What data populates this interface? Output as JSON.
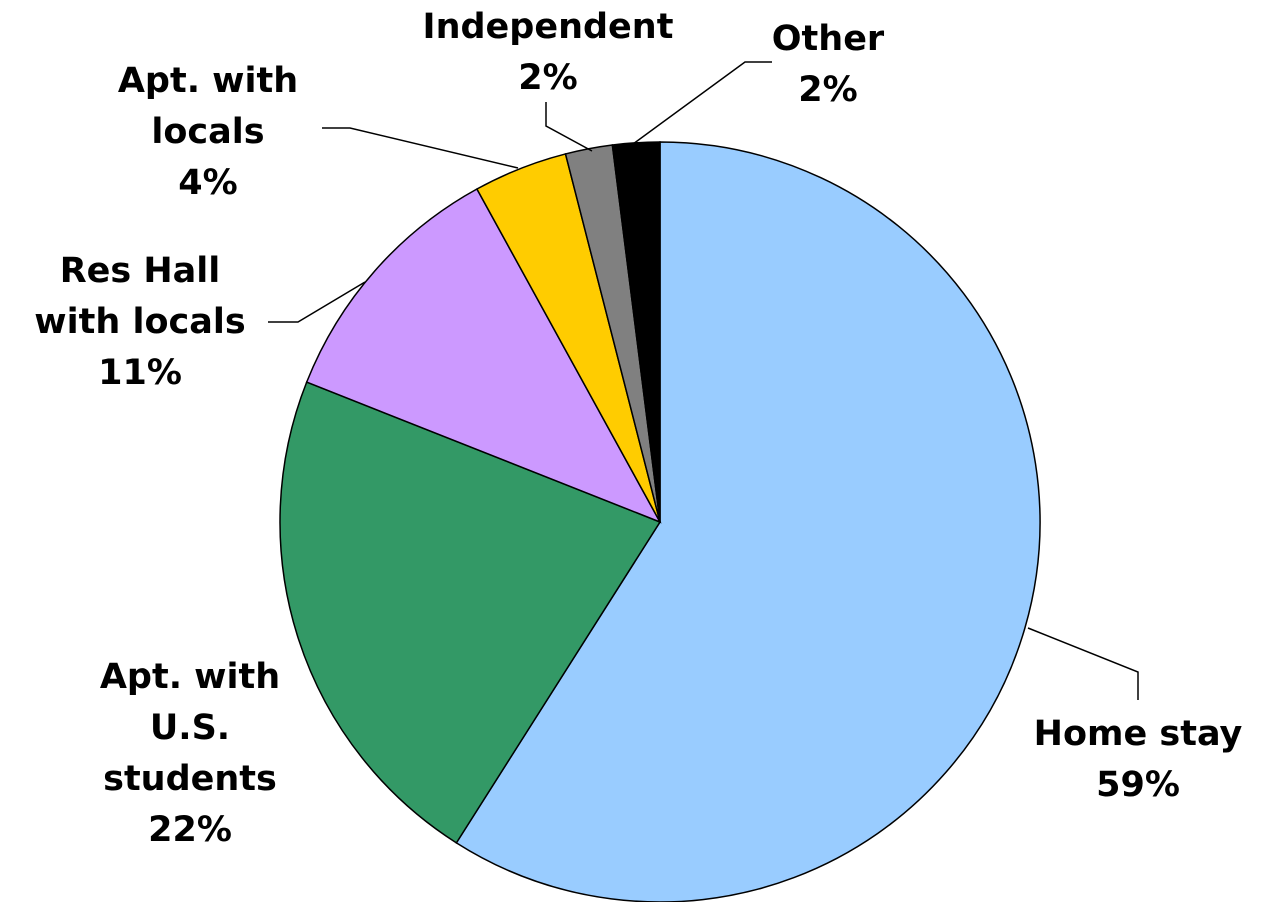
{
  "chart_data": {
    "type": "pie",
    "categories": [
      "Home stay",
      "Apt. with\nU.S.\nstudents",
      "Res Hall\nwith locals",
      "Apt. with\nlocals",
      "Independent",
      "Other"
    ],
    "values": [
      59,
      22,
      11,
      4,
      2,
      2
    ],
    "value_labels": [
      "59%",
      "22%",
      "11%",
      "4%",
      "2%",
      "2%"
    ],
    "colors": [
      "#99ccff",
      "#339966",
      "#cc99ff",
      "#ffcc00",
      "#808080",
      "#000000"
    ]
  }
}
